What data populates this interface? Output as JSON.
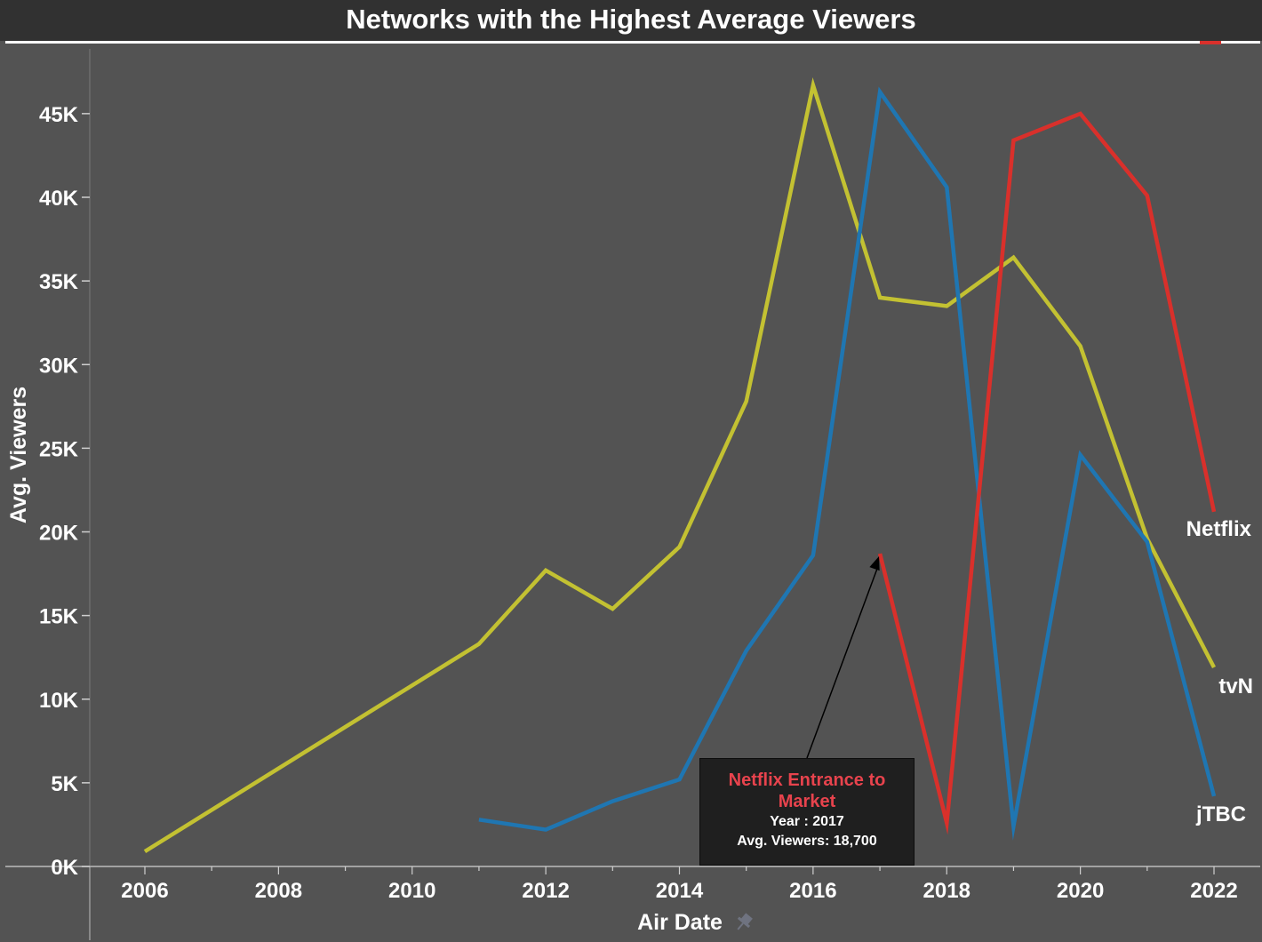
{
  "title": "Networks with the Highest Average Viewers",
  "colors": {
    "background": "#535353",
    "netflix": "#d9302b",
    "tvn": "#c3c132",
    "jtbc": "#1f76b2",
    "annotation_title": "#e8434d"
  },
  "annotation": {
    "title": "Netflix Entrance to Market",
    "year_line": "Year : 2017",
    "viewers_line": "Avg. Viewers: 18,700"
  },
  "chart_data": {
    "type": "line",
    "title": "Networks with the Highest Average Viewers",
    "xlabel": "Air Date",
    "ylabel": "Avg. Viewers",
    "xlim": [
      2005.2,
      2022.7
    ],
    "ylim": [
      0,
      50000
    ],
    "x_ticks": [
      2006,
      2008,
      2010,
      2012,
      2014,
      2016,
      2018,
      2020,
      2022
    ],
    "x_tick_labels": [
      "2006",
      "2008",
      "2010",
      "2012",
      "2014",
      "2016",
      "2018",
      "2020",
      "2022"
    ],
    "y_ticks": [
      0,
      5000,
      10000,
      15000,
      20000,
      25000,
      30000,
      35000,
      40000,
      45000
    ],
    "y_tick_labels": [
      "0K",
      "5K",
      "10K",
      "15K",
      "20K",
      "25K",
      "30K",
      "35K",
      "40K",
      "45K"
    ],
    "grid": false,
    "legend": "direct labels at line ends",
    "series": [
      {
        "name": "tvN",
        "color": "#c3c132",
        "x": [
          2006,
          2011,
          2012,
          2013,
          2014,
          2015,
          2016,
          2017,
          2018,
          2019,
          2020,
          2021,
          2022
        ],
        "values": [
          900,
          13300,
          17700,
          15400,
          19100,
          27800,
          46700,
          34000,
          33500,
          36400,
          31100,
          19600,
          11900
        ]
      },
      {
        "name": "jTBC",
        "color": "#1f76b2",
        "x": [
          2011,
          2012,
          2013,
          2014,
          2015,
          2016,
          2017,
          2018,
          2019,
          2020,
          2021,
          2022
        ],
        "values": [
          2800,
          2200,
          3900,
          5200,
          12900,
          18600,
          46300,
          40600,
          2400,
          24600,
          19400,
          4200
        ]
      },
      {
        "name": "Netflix",
        "color": "#d9302b",
        "x": [
          2017,
          2018,
          2019,
          2020,
          2021,
          2022
        ],
        "values": [
          18700,
          2600,
          43400,
          45000,
          40100,
          21200
        ]
      }
    ],
    "annotations": [
      {
        "text": "Netflix Entrance to Market",
        "detail": [
          "Year : 2017",
          "Avg. Viewers: 18,700"
        ],
        "x": 2017,
        "y": 18700
      }
    ]
  }
}
